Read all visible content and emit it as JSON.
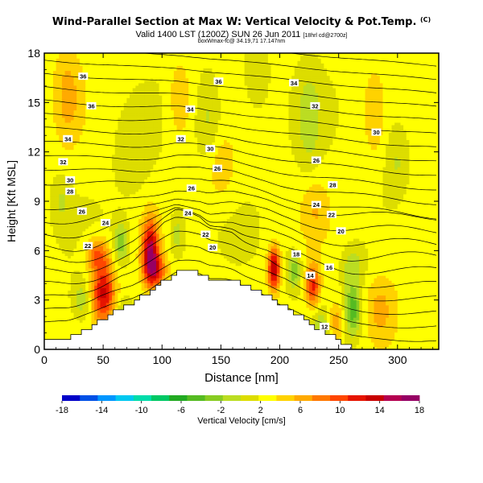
{
  "header": {
    "title": "Wind-Parallel Section at Max W: Vertical Velocity & Pot.Temp.",
    "title_mark": "(C)",
    "subtitle_main": "Valid 1400 LST (1200Z) SUN 26 Jun 2011",
    "subtitle_small": "[18hrl cd@2700z]",
    "subtitle_line2": "boxWmax-fc@ 34.19,71 17.147nm"
  },
  "chart_data": {
    "type": "heatmap",
    "xlabel": "Distance [nm]",
    "ylabel": "Height [Kft MSL]",
    "xlim": [
      0,
      335
    ],
    "ylim": [
      0,
      18
    ],
    "xticks": [
      0,
      50,
      100,
      150,
      200,
      250,
      300
    ],
    "yticks": [
      0,
      3,
      6,
      9,
      12,
      15,
      18
    ],
    "colorbar": {
      "label": "Vertical Velocity [cm/s]",
      "ticks": [
        -18,
        -14,
        -10,
        -6,
        -2,
        2,
        6,
        10,
        14,
        18
      ],
      "colors": [
        "#0000c8",
        "#0050e6",
        "#0096ff",
        "#00c8f0",
        "#00dcaa",
        "#00c864",
        "#22aa22",
        "#55bb22",
        "#88cc22",
        "#bbdd22",
        "#dddd00",
        "#ffff00",
        "#ffd200",
        "#ffaa00",
        "#ff7800",
        "#ff4600",
        "#e61400",
        "#c80000",
        "#b40050",
        "#960064"
      ]
    },
    "terrain_kft": [
      [
        0,
        0.7
      ],
      [
        20,
        0.7
      ],
      [
        28,
        0.9
      ],
      [
        35,
        1.2
      ],
      [
        42,
        1.5
      ],
      [
        50,
        1.9
      ],
      [
        58,
        2.3
      ],
      [
        66,
        2.6
      ],
      [
        75,
        2.9
      ],
      [
        85,
        3.4
      ],
      [
        95,
        3.9
      ],
      [
        103,
        4.3
      ],
      [
        112,
        4.7
      ],
      [
        122,
        4.7
      ],
      [
        132,
        4.6
      ],
      [
        140,
        4.3
      ],
      [
        152,
        4.3
      ],
      [
        160,
        4.2
      ],
      [
        170,
        3.8
      ],
      [
        180,
        3.5
      ],
      [
        190,
        3.2
      ],
      [
        200,
        2.7
      ],
      [
        210,
        2.3
      ],
      [
        220,
        1.8
      ],
      [
        230,
        1.3
      ],
      [
        240,
        0.9
      ],
      [
        250,
        0.5
      ],
      [
        260,
        0.1
      ],
      [
        270,
        0
      ],
      [
        335,
        0
      ]
    ],
    "w_cells": [
      {
        "x": 50,
        "y": 3.5,
        "sx": 10,
        "sy": 1.8,
        "w": 12
      },
      {
        "x": 45,
        "y": 5.8,
        "sx": 10,
        "sy": 1.0,
        "w": 7
      },
      {
        "x": 32,
        "y": 3.0,
        "sx": 8,
        "sy": 1.2,
        "w": -4
      },
      {
        "x": 90,
        "y": 6.0,
        "sx": 7,
        "sy": 1.9,
        "w": 14
      },
      {
        "x": 95,
        "y": 4.8,
        "sx": 9,
        "sy": 1.0,
        "w": 8
      },
      {
        "x": 65,
        "y": 6.5,
        "sx": 6,
        "sy": 1.2,
        "w": -6
      },
      {
        "x": 68,
        "y": 2.0,
        "sx": 6,
        "sy": 1.0,
        "w": -5
      },
      {
        "x": 113,
        "y": 7.0,
        "sx": 6,
        "sy": 1.4,
        "w": -4
      },
      {
        "x": 195,
        "y": 4.9,
        "sx": 5,
        "sy": 1.3,
        "w": 14
      },
      {
        "x": 228,
        "y": 3.9,
        "sx": 6,
        "sy": 1.3,
        "w": 10
      },
      {
        "x": 212,
        "y": 4.8,
        "sx": 6,
        "sy": 1.1,
        "w": -6
      },
      {
        "x": 262,
        "y": 2.4,
        "sx": 7,
        "sy": 1.5,
        "w": -8
      },
      {
        "x": 262,
        "y": 5.0,
        "sx": 9,
        "sy": 1.2,
        "w": -4
      },
      {
        "x": 235,
        "y": 1.5,
        "sx": 7,
        "sy": 1.0,
        "w": -4
      },
      {
        "x": 248,
        "y": 1.7,
        "sx": 7,
        "sy": 1.2,
        "w": 5
      },
      {
        "x": 310,
        "y": 6.5,
        "sx": 18,
        "sy": 3.5,
        "w": 2
      },
      {
        "x": 285,
        "y": 2.5,
        "sx": 12,
        "sy": 2.0,
        "w": 4
      },
      {
        "x": 115,
        "y": 15.2,
        "sx": 10,
        "sy": 2.5,
        "w": 3.5
      },
      {
        "x": 140,
        "y": 14.0,
        "sx": 10,
        "sy": 2.5,
        "w": -3
      },
      {
        "x": 225,
        "y": 14.0,
        "sx": 10,
        "sy": 3.0,
        "w": -3.5
      },
      {
        "x": 180,
        "y": 16.5,
        "sx": 10,
        "sy": 2.0,
        "w": -2.5
      },
      {
        "x": 280,
        "y": 14.5,
        "sx": 8,
        "sy": 2.5,
        "w": 3
      },
      {
        "x": 20,
        "y": 15.5,
        "sx": 12,
        "sy": 3.0,
        "w": 4
      },
      {
        "x": 150,
        "y": 11.0,
        "sx": 12,
        "sy": 2.0,
        "w": 3
      },
      {
        "x": 75,
        "y": 12.0,
        "sx": 15,
        "sy": 2.5,
        "w": -2
      },
      {
        "x": 230,
        "y": 8.5,
        "sx": 12,
        "sy": 2.0,
        "w": 3
      },
      {
        "x": 300,
        "y": 11.5,
        "sx": 10,
        "sy": 2.5,
        "w": -3
      },
      {
        "x": 15,
        "y": 9.0,
        "sx": 8,
        "sy": 1.5,
        "w": -2.5
      }
    ],
    "theta_labels": [
      {
        "x": 33,
        "y": 16.6,
        "t": "36"
      },
      {
        "x": 148,
        "y": 16.3,
        "t": "36"
      },
      {
        "x": 212,
        "y": 16.2,
        "t": "34"
      },
      {
        "x": 40,
        "y": 14.8,
        "t": "36"
      },
      {
        "x": 124,
        "y": 14.6,
        "t": "34"
      },
      {
        "x": 230,
        "y": 14.8,
        "t": "32"
      },
      {
        "x": 20,
        "y": 12.8,
        "t": "34"
      },
      {
        "x": 116,
        "y": 12.8,
        "t": "32"
      },
      {
        "x": 282,
        "y": 13.2,
        "t": "30"
      },
      {
        "x": 16,
        "y": 11.4,
        "t": "32"
      },
      {
        "x": 141,
        "y": 12.2,
        "t": "30"
      },
      {
        "x": 231,
        "y": 11.5,
        "t": "26"
      },
      {
        "x": 22,
        "y": 10.3,
        "t": "30"
      },
      {
        "x": 147,
        "y": 11.0,
        "t": "26"
      },
      {
        "x": 245,
        "y": 10.0,
        "t": "28"
      },
      {
        "x": 22,
        "y": 9.6,
        "t": "28"
      },
      {
        "x": 125,
        "y": 9.8,
        "t": "26"
      },
      {
        "x": 231,
        "y": 8.8,
        "t": "24"
      },
      {
        "x": 32,
        "y": 8.4,
        "t": "26"
      },
      {
        "x": 122,
        "y": 8.3,
        "t": "24"
      },
      {
        "x": 244,
        "y": 8.2,
        "t": "22"
      },
      {
        "x": 52,
        "y": 7.7,
        "t": "24"
      },
      {
        "x": 137,
        "y": 7.0,
        "t": "22"
      },
      {
        "x": 252,
        "y": 7.2,
        "t": "20"
      },
      {
        "x": 37,
        "y": 6.3,
        "t": "22"
      },
      {
        "x": 143,
        "y": 6.2,
        "t": "20"
      },
      {
        "x": 214,
        "y": 5.8,
        "t": "18"
      },
      {
        "x": 242,
        "y": 5.0,
        "t": "16"
      },
      {
        "x": 226,
        "y": 4.5,
        "t": "14"
      },
      {
        "x": 238,
        "y": 1.4,
        "t": "12"
      }
    ]
  }
}
